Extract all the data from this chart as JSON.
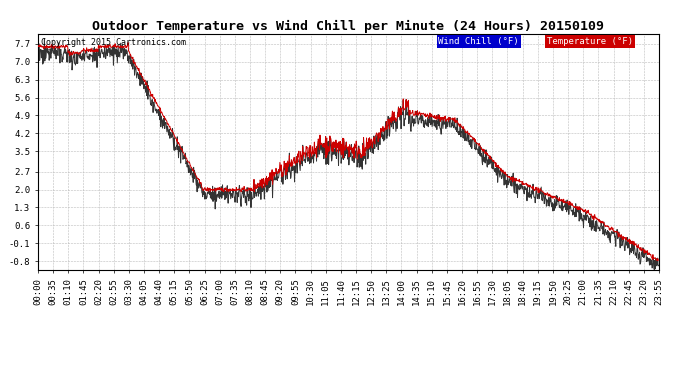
{
  "title": "Outdoor Temperature vs Wind Chill per Minute (24 Hours) 20150109",
  "copyright": "Copyright 2015 Cartronics.com",
  "legend_wind_chill": "Wind Chill (°F)",
  "legend_temperature": "Temperature (°F)",
  "yticks": [
    7.7,
    7.0,
    6.3,
    5.6,
    4.9,
    4.2,
    3.5,
    2.7,
    2.0,
    1.3,
    0.6,
    -0.1,
    -0.8
  ],
  "ylim": [
    -1.15,
    8.1
  ],
  "xlim": [
    0,
    1440
  ],
  "background_color": "#ffffff",
  "grid_color": "#bbbbbb",
  "line_color_temp": "#cc0000",
  "line_color_wind": "#333333",
  "title_fontsize": 9.5,
  "tick_fontsize": 6.5,
  "xtick_labels": [
    "00:00",
    "00:35",
    "01:10",
    "01:45",
    "02:20",
    "02:55",
    "03:30",
    "04:05",
    "04:40",
    "05:15",
    "05:50",
    "06:25",
    "07:00",
    "07:35",
    "08:10",
    "08:45",
    "09:20",
    "09:55",
    "10:30",
    "11:05",
    "11:40",
    "12:15",
    "12:50",
    "13:25",
    "14:00",
    "14:35",
    "15:10",
    "15:45",
    "16:20",
    "16:55",
    "17:30",
    "18:05",
    "18:40",
    "19:15",
    "19:50",
    "20:25",
    "21:00",
    "21:35",
    "22:10",
    "22:45",
    "23:20",
    "23:55"
  ]
}
